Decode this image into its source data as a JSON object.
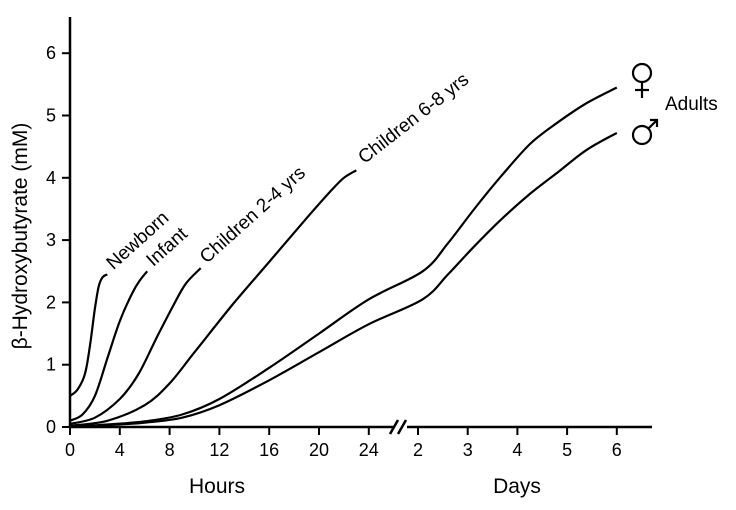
{
  "chart_data": {
    "type": "line",
    "title": "",
    "ylabel": "β-Hydroxybutyrate (mM)",
    "ylim": [
      0,
      6.5
    ],
    "y_ticks": [
      "0",
      "1",
      "2",
      "3",
      "4",
      "5",
      "6"
    ],
    "x_axis_broken": true,
    "x_segments": [
      {
        "label": "Hours",
        "unit": "hours",
        "range": [
          0,
          24
        ],
        "ticks": [
          "0",
          "4",
          "8",
          "12",
          "16",
          "20",
          "24"
        ]
      },
      {
        "label": "Days",
        "unit": "days",
        "range": [
          2,
          6
        ],
        "ticks": [
          "2",
          "3",
          "4",
          "5",
          "6"
        ]
      }
    ],
    "series": [
      {
        "name": "Newborn",
        "segment": "hours",
        "points": [
          [
            0,
            0.5
          ],
          [
            0.6,
            0.6
          ],
          [
            1.2,
            0.85
          ],
          [
            1.6,
            1.3
          ],
          [
            2.0,
            1.9
          ],
          [
            2.3,
            2.25
          ],
          [
            2.6,
            2.4
          ],
          [
            3.0,
            2.45
          ]
        ]
      },
      {
        "name": "Infant",
        "segment": "hours",
        "points": [
          [
            0,
            0.1
          ],
          [
            1.0,
            0.2
          ],
          [
            2.0,
            0.5
          ],
          [
            3.0,
            1.1
          ],
          [
            4.0,
            1.7
          ],
          [
            5.0,
            2.15
          ],
          [
            5.6,
            2.35
          ],
          [
            6.2,
            2.5
          ]
        ]
      },
      {
        "name": "Children 2-4 yrs",
        "segment": "hours",
        "points": [
          [
            0,
            0.05
          ],
          [
            2.0,
            0.15
          ],
          [
            4.0,
            0.45
          ],
          [
            5.5,
            0.85
          ],
          [
            7.0,
            1.45
          ],
          [
            8.3,
            1.95
          ],
          [
            9.3,
            2.3
          ],
          [
            10.5,
            2.55
          ]
        ]
      },
      {
        "name": "Children 6-8 yrs",
        "segment": "hours",
        "points": [
          [
            0,
            0.02
          ],
          [
            3.0,
            0.1
          ],
          [
            6.0,
            0.35
          ],
          [
            8.0,
            0.7
          ],
          [
            10.0,
            1.2
          ],
          [
            13.0,
            1.95
          ],
          [
            16.0,
            2.65
          ],
          [
            19.0,
            3.35
          ],
          [
            21.0,
            3.8
          ],
          [
            22.0,
            4.0
          ],
          [
            23.0,
            4.12
          ]
        ]
      },
      {
        "name": "Adults ♀",
        "segment": "all",
        "points": [
          [
            0,
            0.0
          ],
          [
            3.0,
            0.04
          ],
          [
            6.0,
            0.09
          ],
          [
            9.0,
            0.2
          ],
          [
            12.0,
            0.45
          ],
          [
            16.0,
            0.95
          ],
          [
            20.0,
            1.5
          ],
          [
            24.0,
            2.05
          ],
          [
            26.5,
            2.5
          ],
          [
            29.2,
            2.95
          ],
          [
            32.0,
            3.5
          ],
          [
            35.0,
            4.05
          ],
          [
            38.0,
            4.55
          ],
          [
            41.0,
            4.9
          ],
          [
            44.0,
            5.2
          ],
          [
            47.2,
            5.45
          ]
        ]
      },
      {
        "name": "Adults ♂",
        "segment": "all",
        "points": [
          [
            0,
            0.0
          ],
          [
            3.0,
            0.03
          ],
          [
            6.0,
            0.07
          ],
          [
            9.0,
            0.15
          ],
          [
            12.0,
            0.35
          ],
          [
            16.0,
            0.75
          ],
          [
            20.0,
            1.2
          ],
          [
            24.0,
            1.65
          ],
          [
            26.5,
            2.05
          ],
          [
            29.2,
            2.45
          ],
          [
            32.0,
            2.9
          ],
          [
            35.0,
            3.35
          ],
          [
            38.0,
            3.75
          ],
          [
            41.0,
            4.1
          ],
          [
            44.0,
            4.45
          ],
          [
            47.2,
            4.72
          ]
        ]
      }
    ],
    "annotations": {
      "female_symbol": "♀",
      "male_symbol": "♂",
      "adults_label": "Adults"
    }
  }
}
